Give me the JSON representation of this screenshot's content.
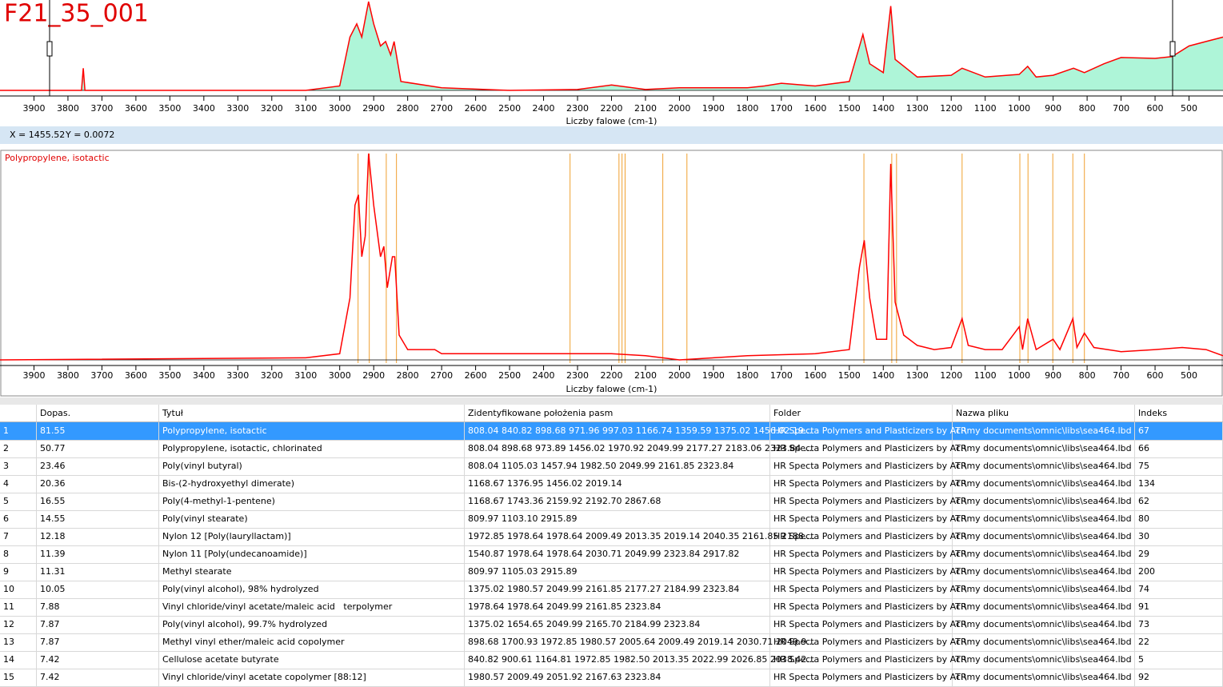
{
  "title": "F21_35_001",
  "status": {
    "x": "X = 1455.52",
    "y": "Y = 0.0072"
  },
  "chart_data": [
    {
      "type": "line",
      "color": "#ff0000",
      "fill": "#aef5d8",
      "xlabel": "Liczby falowe (cm-1)",
      "xlim": [
        4000,
        400
      ],
      "ylim": [
        0,
        1
      ],
      "xticks": [
        3900,
        3800,
        3700,
        3600,
        3500,
        3400,
        3300,
        3200,
        3100,
        3000,
        2900,
        2800,
        2700,
        2600,
        2500,
        2400,
        2300,
        2200,
        2100,
        2000,
        1900,
        1800,
        1700,
        1600,
        1500,
        1400,
        1300,
        1200,
        1100,
        1000,
        900,
        800,
        700,
        600,
        500
      ],
      "x": [
        4000,
        3760,
        3755,
        3750,
        3100,
        3000,
        2970,
        2950,
        2935,
        2915,
        2900,
        2880,
        2865,
        2850,
        2840,
        2820,
        2700,
        2500,
        2300,
        2200,
        2100,
        2000,
        1800,
        1750,
        1700,
        1600,
        1500,
        1460,
        1440,
        1400,
        1378,
        1365,
        1300,
        1200,
        1168,
        1100,
        1000,
        975,
        950,
        900,
        840,
        808,
        750,
        700,
        600,
        550,
        500,
        450,
        400
      ],
      "y": [
        0,
        0,
        0.25,
        0,
        0,
        0.05,
        0.6,
        0.75,
        0.6,
        1,
        0.75,
        0.5,
        0.55,
        0.4,
        0.55,
        0.1,
        0.03,
        0,
        0.01,
        0.06,
        0.01,
        0.03,
        0.03,
        0.05,
        0.08,
        0.05,
        0.1,
        0.63,
        0.3,
        0.2,
        0.95,
        0.35,
        0.15,
        0.17,
        0.25,
        0.15,
        0.18,
        0.27,
        0.15,
        0.17,
        0.25,
        0.2,
        0.3,
        0.37,
        0.36,
        0.38,
        0.5,
        0.55,
        0.6
      ]
    },
    {
      "type": "line",
      "color": "#ff0000",
      "title": "Polypropylene, isotactic",
      "peak_color": "#f0a030",
      "xlabel": "Liczby falowe (cm-1)",
      "xlim": [
        4000,
        400
      ],
      "ylim": [
        0,
        1
      ],
      "xticks": [
        3900,
        3800,
        3700,
        3600,
        3500,
        3400,
        3300,
        3200,
        3100,
        3000,
        2900,
        2800,
        2700,
        2600,
        2500,
        2400,
        2300,
        2200,
        2100,
        2000,
        1900,
        1800,
        1700,
        1600,
        1500,
        1400,
        1300,
        1200,
        1100,
        1000,
        900,
        800,
        700,
        600,
        500
      ],
      "peak_lines": [
        2946,
        2913,
        2863,
        2833,
        2322,
        2178,
        2169,
        2160,
        2049,
        1978,
        1457,
        1375,
        1361,
        1168,
        998,
        974,
        901,
        842,
        808
      ],
      "x": [
        4000,
        3100,
        3000,
        2970,
        2955,
        2945,
        2935,
        2925,
        2915,
        2900,
        2880,
        2870,
        2860,
        2845,
        2838,
        2825,
        2800,
        2720,
        2700,
        2400,
        2200,
        2100,
        2000,
        1900,
        1800,
        1600,
        1500,
        1470,
        1456,
        1440,
        1420,
        1390,
        1378,
        1365,
        1340,
        1300,
        1250,
        1200,
        1168,
        1150,
        1100,
        1050,
        1000,
        990,
        975,
        950,
        900,
        880,
        842,
        830,
        808,
        780,
        700,
        600,
        520,
        450,
        400
      ],
      "y": [
        0,
        0.01,
        0.03,
        0.3,
        0.75,
        0.8,
        0.5,
        0.6,
        1,
        0.75,
        0.5,
        0.55,
        0.35,
        0.5,
        0.5,
        0.12,
        0.05,
        0.05,
        0.03,
        0.03,
        0.03,
        0.02,
        0,
        0.01,
        0.02,
        0.03,
        0.05,
        0.45,
        0.58,
        0.3,
        0.1,
        0.1,
        0.95,
        0.28,
        0.12,
        0.07,
        0.05,
        0.06,
        0.2,
        0.07,
        0.05,
        0.05,
        0.16,
        0.05,
        0.2,
        0.05,
        0.1,
        0.05,
        0.2,
        0.06,
        0.13,
        0.06,
        0.04,
        0.05,
        0.06,
        0.05,
        0.02
      ]
    }
  ],
  "table": {
    "columns": [
      "Dopas.",
      "Tytuł",
      "Zidentyfikowane położenia pasm",
      "Folder",
      "Nazwa pliku",
      "Indeks"
    ],
    "rows": [
      [
        "1",
        "81.55",
        "Polypropylene, isotactic",
        "808.04 840.82 898.68 971.96 997.03 1166.74 1359.59 1375.02 1456.02 19...",
        "HR Specta Polymers and Plasticizers by ATR",
        "c:\\my documents\\omnic\\libs\\sea464.lbd",
        "67"
      ],
      [
        "2",
        "50.77",
        "Polypropylene, isotactic, chlorinated",
        "808.04 898.68 973.89 1456.02 1970.92 2049.99 2177.27 2183.06 2323.84 ...",
        "HR Specta Polymers and Plasticizers by ATR",
        "c:\\my documents\\omnic\\libs\\sea464.lbd",
        "66"
      ],
      [
        "3",
        "23.46",
        "Poly(vinyl butyral)",
        "808.04 1105.03 1457.94 1982.50 2049.99 2161.85 2323.84",
        "HR Specta Polymers and Plasticizers by ATR",
        "c:\\my documents\\omnic\\libs\\sea464.lbd",
        "75"
      ],
      [
        "4",
        "20.36",
        "Bis-(2-hydroxyethyl dimerate)",
        "1168.67 1376.95 1456.02 2019.14",
        "HR Specta Polymers and Plasticizers by ATR",
        "c:\\my documents\\omnic\\libs\\sea464.lbd",
        "134"
      ],
      [
        "5",
        "16.55",
        "Poly(4-methyl-1-pentene)",
        "1168.67 1743.36 2159.92 2192.70 2867.68",
        "HR Specta Polymers and Plasticizers by ATR",
        "c:\\my documents\\omnic\\libs\\sea464.lbd",
        "62"
      ],
      [
        "6",
        "14.55",
        "Poly(vinyl stearate)",
        "809.97 1103.10 2915.89",
        "HR Specta Polymers and Plasticizers by ATR",
        "c:\\my documents\\omnic\\libs\\sea464.lbd",
        "80"
      ],
      [
        "7",
        "12.18",
        "Nylon 12 [Poly(lauryllactam)]",
        "1972.85 1978.64 1978.64 2009.49 2013.35 2019.14 2040.35 2161.85 2188....",
        "HR Specta Polymers and Plasticizers by ATR",
        "c:\\my documents\\omnic\\libs\\sea464.lbd",
        "30"
      ],
      [
        "8",
        "11.39",
        "Nylon 11 [Poly(undecanoamide)]",
        "1540.87 1978.64 1978.64 2030.71 2049.99 2323.84 2917.82",
        "HR Specta Polymers and Plasticizers by ATR",
        "c:\\my documents\\omnic\\libs\\sea464.lbd",
        "29"
      ],
      [
        "9",
        "11.31",
        "Methyl stearate",
        "809.97 1105.03 2915.89",
        "HR Specta Polymers and Plasticizers by ATR",
        "c:\\my documents\\omnic\\libs\\sea464.lbd",
        "200"
      ],
      [
        "10",
        "10.05",
        "Poly(vinyl alcohol), 98% hydrolyzed",
        "1375.02 1980.57 2049.99 2161.85 2177.27 2184.99 2323.84",
        "HR Specta Polymers and Plasticizers by ATR",
        "c:\\my documents\\omnic\\libs\\sea464.lbd",
        "74"
      ],
      [
        "11",
        "7.88",
        "Vinyl chloride/vinyl acetate/maleic acid   terpolymer",
        "1978.64 1978.64 2049.99 2161.85 2323.84",
        "HR Specta Polymers and Plasticizers by ATR",
        "c:\\my documents\\omnic\\libs\\sea464.lbd",
        "91"
      ],
      [
        "12",
        "7.87",
        "Poly(vinyl alcohol), 99.7% hydrolyzed",
        "1375.02 1654.65 2049.99 2165.70 2184.99 2323.84",
        "HR Specta Polymers and Plasticizers by ATR",
        "c:\\my documents\\omnic\\libs\\sea464.lbd",
        "73"
      ],
      [
        "13",
        "7.87",
        "Methyl vinyl ether/maleic acid copolymer",
        "898.68 1700.93 1972.85 1980.57 2005.64 2009.49 2019.14 2030.71 2049.9...",
        "HR Specta Polymers and Plasticizers by ATR",
        "c:\\my documents\\omnic\\libs\\sea464.lbd",
        "22"
      ],
      [
        "14",
        "7.42",
        "Cellulose acetate butyrate",
        "840.82 900.61 1164.81 1972.85 1982.50 2013.35 2022.99 2026.85 2038.42...",
        "HR Specta Polymers and Plasticizers by ATR",
        "c:\\my documents\\omnic\\libs\\sea464.lbd",
        "5"
      ],
      [
        "15",
        "7.42",
        "Vinyl chloride/vinyl acetate copolymer [88:12]",
        "1980.57 2009.49 2051.92 2167.63 2323.84",
        "HR Specta Polymers and Plasticizers by ATR",
        "c:\\my documents\\omnic\\libs\\sea464.lbd",
        "92"
      ]
    ]
  }
}
